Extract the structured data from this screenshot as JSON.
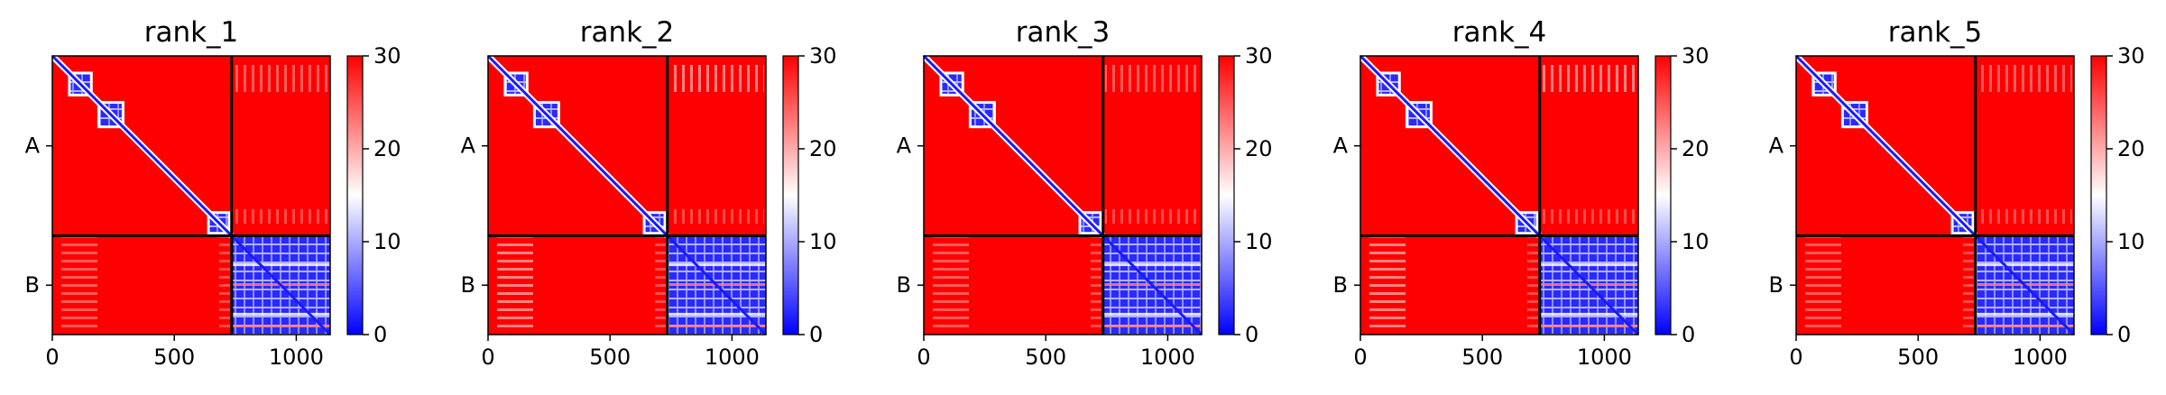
{
  "chart_data": {
    "type": "heatmap",
    "colormap": "bwr",
    "colorbar": {
      "min": 0,
      "max": 30,
      "ticks": [
        0,
        10,
        20,
        30
      ],
      "colors": {
        "low": "#0000ff",
        "mid": "#ffffff",
        "high": "#ff0000"
      }
    },
    "x_ticks": [
      0,
      500,
      1000
    ],
    "x_range": [
      0,
      1139
    ],
    "chain_boundary": 735,
    "chains": [
      {
        "label": "A",
        "start": 0,
        "end": 735
      },
      {
        "label": "B",
        "start": 735,
        "end": 1139
      }
    ],
    "grid": false,
    "panels": [
      {
        "title": "rank_1"
      },
      {
        "title": "rank_2"
      },
      {
        "title": "rank_3"
      },
      {
        "title": "rank_4"
      },
      {
        "title": "rank_5"
      }
    ]
  }
}
